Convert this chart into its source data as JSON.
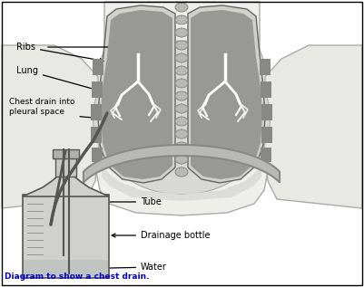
{
  "bg_color": "#ffffff",
  "border_color": "#000000",
  "title": "Diagram to show a chest drain.",
  "title_color": "#0000cc",
  "labels": {
    "ribs": "Ribs",
    "lung": "Lung",
    "chest_drain": "Chest drain into\npleural space",
    "tube": "Tube",
    "drainage_bottle": "Drainage bottle",
    "water": "Water"
  },
  "colors": {
    "skin_light": "#eeeeea",
    "skin_outline": "#aaaaaa",
    "chest_cavity": "#d8d8d4",
    "lung_outer": "#b0b0ac",
    "lung_inner": "#989894",
    "lung_outline": "#666666",
    "rib_dark": "#888884",
    "spine_color": "#999999",
    "diaphragm_color": "#c0c0bc",
    "drain_tube": "#555555",
    "bottle_body": "#d0d0cc",
    "bottle_outline": "#555555",
    "water_color": "#c0c4c0",
    "bronchi_color": "#ffffff",
    "annotation_line": "#000000",
    "arm_color": "#e8e8e4"
  }
}
